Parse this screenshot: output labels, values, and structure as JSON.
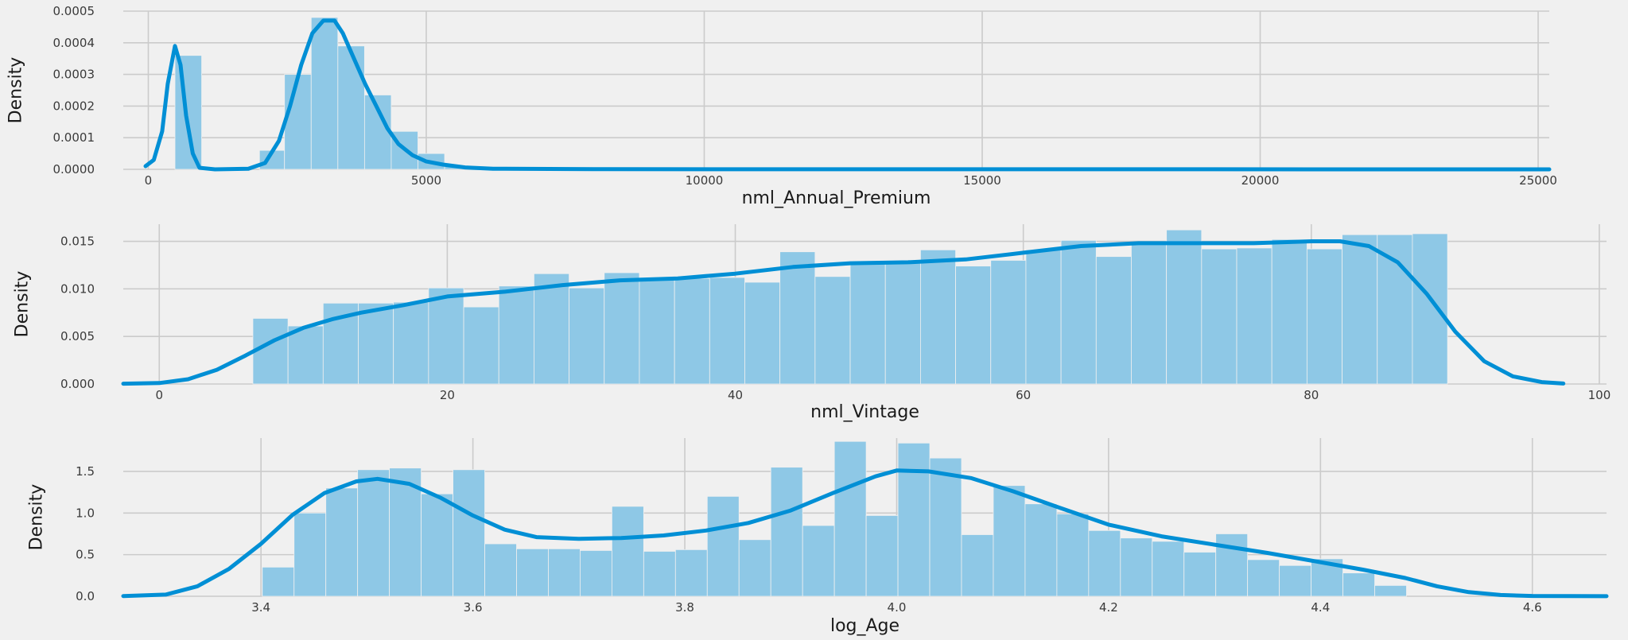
{
  "colors": {
    "background": "#f0f0f0",
    "grid": "#cbcbcb",
    "bar": "#8ec8e6",
    "kde": "#008fd5"
  },
  "chart_data": [
    {
      "type": "bar",
      "style": "histogram with KDE line",
      "xlabel": "nml_Annual_Premium",
      "ylabel": "Density",
      "xlim": [
        -450,
        25200
      ],
      "ylim": [
        0,
        0.0005
      ],
      "grid": true,
      "xticks": [
        0,
        5000,
        10000,
        15000,
        20000,
        25000
      ],
      "yticks": [
        "0.0000",
        "0.0001",
        "0.0002",
        "0.0003",
        "0.0004",
        "0.0005"
      ],
      "bins": [
        {
          "x0": 480,
          "x1": 960,
          "value": 0.00036
        },
        {
          "x0": 2000,
          "x1": 2450,
          "value": 6e-05
        },
        {
          "x0": 2450,
          "x1": 2930,
          "value": 0.0003
        },
        {
          "x0": 2930,
          "x1": 3410,
          "value": 0.00048
        },
        {
          "x0": 3410,
          "x1": 3890,
          "value": 0.00039
        },
        {
          "x0": 3890,
          "x1": 4370,
          "value": 0.000235
        },
        {
          "x0": 4370,
          "x1": 4850,
          "value": 0.00012
        },
        {
          "x0": 4850,
          "x1": 5330,
          "value": 5e-05
        },
        {
          "x0": 5330,
          "x1": 5810,
          "value": 1.2e-05
        },
        {
          "x0": 5810,
          "x1": 25200,
          "value": 2e-06
        }
      ],
      "kde": [
        [
          -50,
          1e-05
        ],
        [
          100,
          3e-05
        ],
        [
          250,
          0.00012
        ],
        [
          350,
          0.00027
        ],
        [
          480,
          0.00039
        ],
        [
          580,
          0.00033
        ],
        [
          680,
          0.00017
        ],
        [
          800,
          5e-05
        ],
        [
          920,
          5e-06
        ],
        [
          1200,
          0
        ],
        [
          1800,
          2e-06
        ],
        [
          2100,
          2e-05
        ],
        [
          2350,
          9e-05
        ],
        [
          2550,
          0.0002
        ],
        [
          2750,
          0.00033
        ],
        [
          2950,
          0.00043
        ],
        [
          3150,
          0.00047
        ],
        [
          3350,
          0.00047
        ],
        [
          3500,
          0.00043
        ],
        [
          3700,
          0.00035
        ],
        [
          3900,
          0.00027
        ],
        [
          4100,
          0.0002
        ],
        [
          4300,
          0.00013
        ],
        [
          4500,
          8e-05
        ],
        [
          4750,
          4.5e-05
        ],
        [
          5000,
          2.5e-05
        ],
        [
          5300,
          1.5e-05
        ],
        [
          5700,
          6e-06
        ],
        [
          6200,
          2e-06
        ],
        [
          8000,
          5e-07
        ],
        [
          25200,
          0
        ]
      ]
    },
    {
      "type": "bar",
      "style": "histogram with KDE line",
      "xlabel": "nml_Vintage",
      "ylabel": "Density",
      "xlim": [
        -2.5,
        100.5
      ],
      "ylim": [
        0,
        0.0168
      ],
      "grid": true,
      "xticks": [
        0,
        20,
        40,
        60,
        80,
        100
      ],
      "yticks": [
        "0.000",
        "0.005",
        "0.010",
        "0.015"
      ],
      "bin_start": 6.5,
      "bin_width": 2.44,
      "values": [
        0.0069,
        0.0061,
        0.0085,
        0.0085,
        0.0086,
        0.0101,
        0.0081,
        0.0103,
        0.0116,
        0.0101,
        0.0117,
        0.0111,
        0.0111,
        0.0112,
        0.0107,
        0.0139,
        0.0113,
        0.0128,
        0.0127,
        0.0141,
        0.0124,
        0.013,
        0.0141,
        0.0151,
        0.0134,
        0.0148,
        0.0162,
        0.0142,
        0.0143,
        0.0152,
        0.0142,
        0.0157,
        0.0157,
        0.0158
      ],
      "kde": [
        [
          -2.5,
          3e-05
        ],
        [
          0,
          0.0001
        ],
        [
          2,
          0.0005
        ],
        [
          4,
          0.0015
        ],
        [
          6,
          0.003
        ],
        [
          8,
          0.0046
        ],
        [
          10,
          0.0059
        ],
        [
          12,
          0.0068
        ],
        [
          14,
          0.0075
        ],
        [
          17,
          0.0083
        ],
        [
          20,
          0.0092
        ],
        [
          24,
          0.0097
        ],
        [
          28,
          0.0104
        ],
        [
          32,
          0.0109
        ],
        [
          36,
          0.0111
        ],
        [
          40,
          0.0116
        ],
        [
          44,
          0.0123
        ],
        [
          48,
          0.0127
        ],
        [
          52,
          0.0128
        ],
        [
          56,
          0.0131
        ],
        [
          60,
          0.0138
        ],
        [
          64,
          0.0145
        ],
        [
          68,
          0.0148
        ],
        [
          72,
          0.0148
        ],
        [
          76,
          0.0148
        ],
        [
          80,
          0.015
        ],
        [
          82,
          0.015
        ],
        [
          84,
          0.0145
        ],
        [
          86,
          0.0128
        ],
        [
          88,
          0.0095
        ],
        [
          90,
          0.0055
        ],
        [
          92,
          0.0024
        ],
        [
          94,
          0.0008
        ],
        [
          96,
          0.0002
        ],
        [
          97.5,
          5e-05
        ]
      ]
    },
    {
      "type": "bar",
      "style": "histogram with KDE line",
      "xlabel": "log_Age",
      "ylabel": "Density",
      "xlim": [
        3.27,
        4.67
      ],
      "ylim": [
        0,
        1.9
      ],
      "grid": true,
      "xticks": [
        3.4,
        3.6,
        3.8,
        4.0,
        4.2,
        4.4,
        4.6
      ],
      "yticks": [
        "0.0",
        "0.5",
        "1.0",
        "1.5"
      ],
      "bin_start": 3.4012,
      "bin_width": 0.03,
      "values": [
        0.35,
        1.0,
        1.3,
        1.52,
        1.54,
        1.23,
        1.52,
        0.63,
        0.57,
        0.57,
        0.55,
        1.08,
        0.54,
        0.56,
        1.2,
        0.68,
        1.55,
        0.85,
        1.86,
        0.97,
        1.84,
        1.66,
        0.74,
        1.33,
        1.11,
        0.99,
        0.79,
        0.7,
        0.66,
        0.53,
        0.75,
        0.44,
        0.37,
        0.45,
        0.28,
        0.13
      ],
      "kde": [
        [
          3.27,
          0.003
        ],
        [
          3.31,
          0.02
        ],
        [
          3.34,
          0.12
        ],
        [
          3.37,
          0.33
        ],
        [
          3.4,
          0.63
        ],
        [
          3.43,
          0.98
        ],
        [
          3.46,
          1.24
        ],
        [
          3.49,
          1.38
        ],
        [
          3.51,
          1.41
        ],
        [
          3.54,
          1.35
        ],
        [
          3.57,
          1.18
        ],
        [
          3.6,
          0.97
        ],
        [
          3.63,
          0.8
        ],
        [
          3.66,
          0.71
        ],
        [
          3.7,
          0.69
        ],
        [
          3.74,
          0.7
        ],
        [
          3.78,
          0.73
        ],
        [
          3.82,
          0.79
        ],
        [
          3.86,
          0.88
        ],
        [
          3.9,
          1.03
        ],
        [
          3.94,
          1.24
        ],
        [
          3.98,
          1.44
        ],
        [
          4.0,
          1.51
        ],
        [
          4.03,
          1.5
        ],
        [
          4.07,
          1.42
        ],
        [
          4.11,
          1.26
        ],
        [
          4.15,
          1.08
        ],
        [
          4.2,
          0.86
        ],
        [
          4.25,
          0.72
        ],
        [
          4.3,
          0.62
        ],
        [
          4.35,
          0.52
        ],
        [
          4.4,
          0.41
        ],
        [
          4.44,
          0.32
        ],
        [
          4.48,
          0.22
        ],
        [
          4.51,
          0.12
        ],
        [
          4.54,
          0.05
        ],
        [
          4.57,
          0.015
        ],
        [
          4.6,
          0.004
        ],
        [
          4.67,
          0.001
        ]
      ]
    }
  ]
}
